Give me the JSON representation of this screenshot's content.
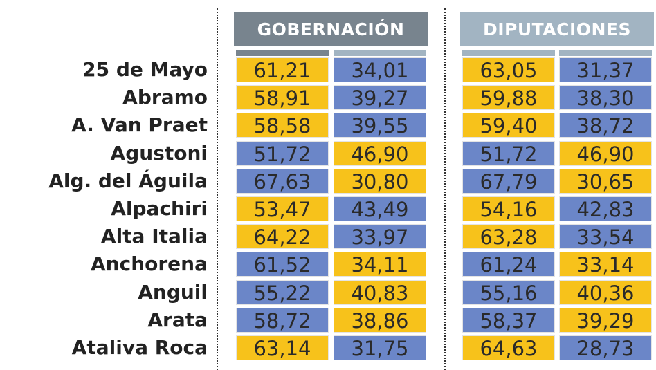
{
  "headers": {
    "gobernacion": "GOBERNACIÓN",
    "diputaciones": "DIPUTACIONES"
  },
  "colors": {
    "yellow": "#f7c21b",
    "blue": "#6b86c8",
    "header_gob": "#78848e",
    "header_dip": "#a2b4c2"
  },
  "chart_data": {
    "type": "table",
    "columns": [
      "GOBERNACIÓN",
      "",
      "DIPUTACIONES",
      ""
    ],
    "rows": [
      {
        "name": "25 de Mayo",
        "values": [
          "61,21",
          "34,01",
          "63,05",
          "31,37"
        ],
        "colors": [
          "yellow",
          "blue",
          "yellow",
          "blue"
        ]
      },
      {
        "name": "Abramo",
        "values": [
          "58,91",
          "39,27",
          "59,88",
          "38,30"
        ],
        "colors": [
          "yellow",
          "blue",
          "yellow",
          "blue"
        ]
      },
      {
        "name": "A. Van Praet",
        "values": [
          "58,58",
          "39,55",
          "59,40",
          "38,72"
        ],
        "colors": [
          "yellow",
          "blue",
          "yellow",
          "blue"
        ]
      },
      {
        "name": "Agustoni",
        "values": [
          "51,72",
          "46,90",
          "51,72",
          "46,90"
        ],
        "colors": [
          "blue",
          "yellow",
          "blue",
          "yellow"
        ]
      },
      {
        "name": "Alg. del Águila",
        "values": [
          "67,63",
          "30,80",
          "67,79",
          "30,65"
        ],
        "colors": [
          "blue",
          "yellow",
          "blue",
          "yellow"
        ]
      },
      {
        "name": "Alpachiri",
        "values": [
          "53,47",
          "43,49",
          "54,16",
          "42,83"
        ],
        "colors": [
          "yellow",
          "blue",
          "yellow",
          "blue"
        ]
      },
      {
        "name": "Alta Italia",
        "values": [
          "64,22",
          "33,97",
          "63,28",
          "33,54"
        ],
        "colors": [
          "yellow",
          "blue",
          "yellow",
          "blue"
        ]
      },
      {
        "name": "Anchorena",
        "values": [
          "61,52",
          "34,11",
          "61,24",
          "33,14"
        ],
        "colors": [
          "blue",
          "yellow",
          "blue",
          "yellow"
        ]
      },
      {
        "name": "Anguil",
        "values": [
          "55,22",
          "40,83",
          "55,16",
          "40,36"
        ],
        "colors": [
          "blue",
          "yellow",
          "blue",
          "yellow"
        ]
      },
      {
        "name": "Arata",
        "values": [
          "58,72",
          "38,86",
          "58,37",
          "39,29"
        ],
        "colors": [
          "blue",
          "yellow",
          "blue",
          "yellow"
        ]
      },
      {
        "name": "Ataliva Roca",
        "values": [
          "63,14",
          "31,75",
          "64,63",
          "28,73"
        ],
        "colors": [
          "yellow",
          "blue",
          "yellow",
          "blue"
        ]
      }
    ]
  }
}
